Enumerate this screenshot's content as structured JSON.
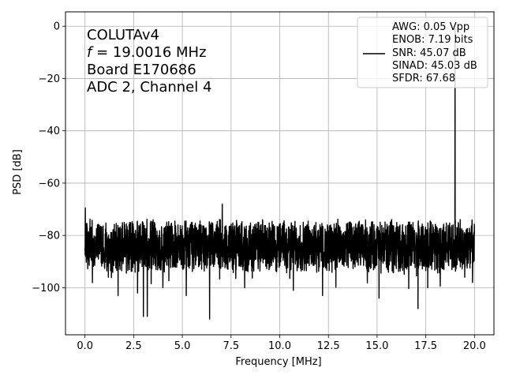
{
  "chart_data": {
    "type": "line",
    "xlabel": "Frequency [MHz]",
    "ylabel": "PSD [dB]",
    "xlim": [
      -1,
      21
    ],
    "ylim": [
      -118,
      5.5
    ],
    "grid": true,
    "xticks": [
      0.0,
      2.5,
      5.0,
      7.5,
      10.0,
      12.5,
      15.0,
      17.5,
      20.0
    ],
    "xtick_labels": [
      "0.0",
      "2.5",
      "5.0",
      "7.5",
      "10.0",
      "12.5",
      "15.0",
      "17.5",
      "20.0"
    ],
    "yticks": [
      0,
      -20,
      -40,
      -60,
      -80,
      -100
    ],
    "ytick_labels": [
      "0",
      "−20",
      "−40",
      "−60",
      "−80",
      "−100"
    ],
    "annotation_lines": [
      "COLUTAv4",
      "f = 19.0016 MHz",
      "Board E170686",
      "ADC 2, Channel 4"
    ],
    "legend": {
      "placement": "top-right",
      "line_color": "#000000",
      "lines": [
        "AWG: 0.05 Vpp",
        "ENOB: 7.19 bits",
        "SNR: 45.07 dB",
        "SINAD: 45.03 dB",
        "SFDR: 67.68"
      ]
    },
    "series": [
      {
        "color": "#000000",
        "x_range": [
          0.0,
          20.0
        ],
        "noise_floor_mean_db": -84,
        "noise_floor_upper_db": -75,
        "noise_floor_lower_db": -93,
        "peak": {
          "x": 19.0016,
          "y": -1.0
        },
        "notable_points": [
          {
            "x": 0.02,
            "y": -69.5
          },
          {
            "x": 0.03,
            "y": -88
          },
          {
            "x": 1.2,
            "y": -96
          },
          {
            "x": 1.7,
            "y": -103
          },
          {
            "x": 2.7,
            "y": -102
          },
          {
            "x": 3.0,
            "y": -111
          },
          {
            "x": 3.2,
            "y": -111
          },
          {
            "x": 4.0,
            "y": -100
          },
          {
            "x": 5.2,
            "y": -103
          },
          {
            "x": 6.4,
            "y": -112
          },
          {
            "x": 7.05,
            "y": -68
          },
          {
            "x": 8.2,
            "y": -100
          },
          {
            "x": 10.7,
            "y": -101
          },
          {
            "x": 12.2,
            "y": -103
          },
          {
            "x": 15.1,
            "y": -104
          },
          {
            "x": 17.1,
            "y": -108
          },
          {
            "x": 17.6,
            "y": -100
          },
          {
            "x": 19.5,
            "y": -96
          },
          {
            "x": 19.9,
            "y": -98
          }
        ]
      }
    ]
  }
}
